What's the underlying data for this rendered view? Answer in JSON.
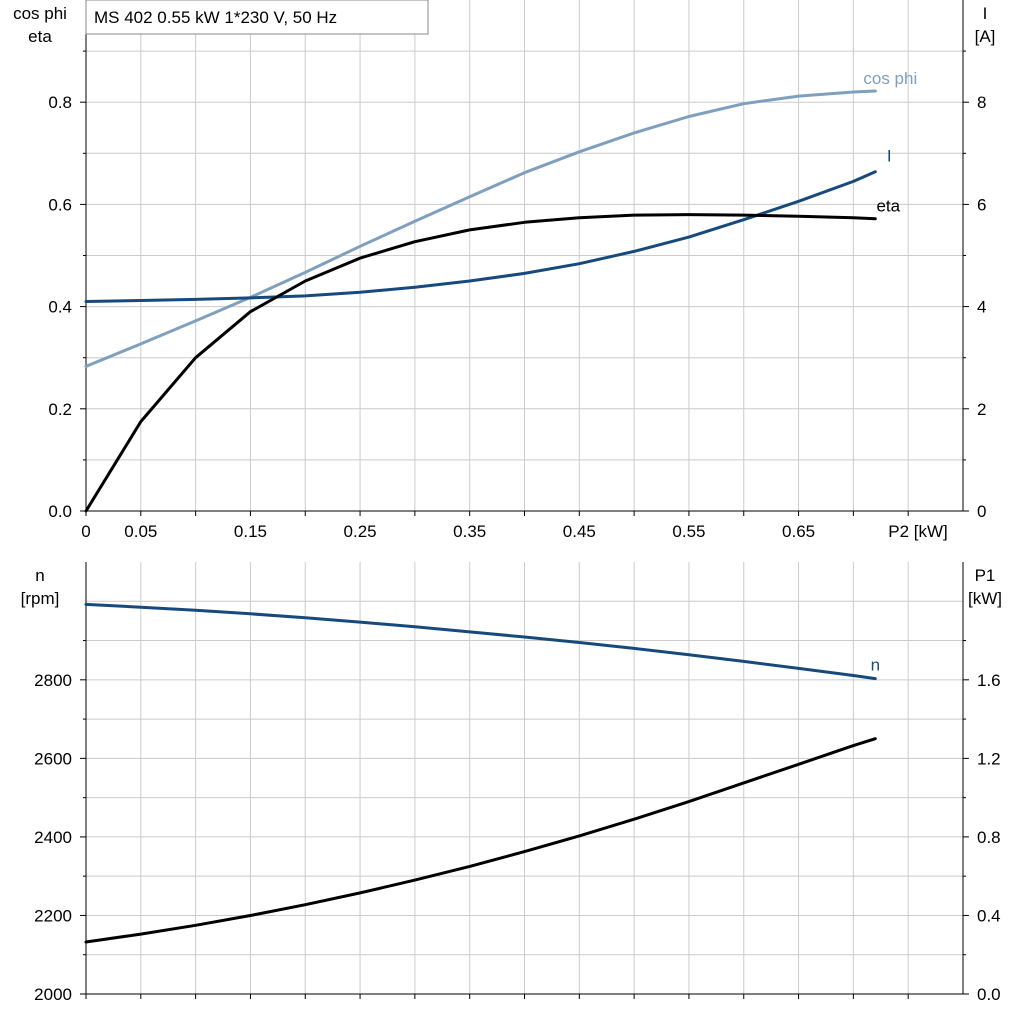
{
  "colors": {
    "cos_phi": "#7f9fbf",
    "current": "#174a7c",
    "eta": "#000000",
    "speed": "#174a7c",
    "p1": "#000000",
    "grid": "#cccccc",
    "axis": "#000000"
  },
  "chart_data": [
    {
      "type": "line",
      "title": "MS 402   0.55 kW   1*230 V, 50 Hz",
      "left_axis_label": [
        "cos phi",
        "eta"
      ],
      "right_axis_label": [
        "I",
        "[A]"
      ],
      "x_axis_label": "P2 [kW]",
      "x_tick_labels": [
        "0",
        "0.05",
        "0.15",
        "0.25",
        "0.35",
        "0.45",
        "0.55",
        "0.65"
      ],
      "x_ticks": [
        0,
        0.05,
        0.15,
        0.25,
        0.35,
        0.45,
        0.55,
        0.65
      ],
      "xlim": [
        0,
        0.8
      ],
      "left_ylim": [
        0,
        1.0
      ],
      "left_tick_labels": [
        "0.0",
        "0.2",
        "0.4",
        "0.6",
        "0.8"
      ],
      "right_ylim": [
        0,
        10
      ],
      "right_tick_labels": [
        "0",
        "2",
        "4",
        "6",
        "8"
      ],
      "grid": true,
      "series": [
        {
          "name": "cos phi",
          "axis": "left",
          "x": [
            0,
            0.05,
            0.1,
            0.15,
            0.2,
            0.25,
            0.3,
            0.35,
            0.4,
            0.45,
            0.5,
            0.55,
            0.6,
            0.65,
            0.7,
            0.72
          ],
          "values": [
            0.283,
            0.327,
            0.372,
            0.418,
            0.467,
            0.518,
            0.567,
            0.615,
            0.662,
            0.703,
            0.74,
            0.772,
            0.797,
            0.812,
            0.82,
            0.822
          ]
        },
        {
          "name": "I",
          "axis": "right",
          "x": [
            0,
            0.05,
            0.1,
            0.15,
            0.2,
            0.25,
            0.3,
            0.35,
            0.4,
            0.45,
            0.5,
            0.55,
            0.6,
            0.65,
            0.7,
            0.72
          ],
          "values": [
            4.1,
            4.12,
            4.14,
            4.17,
            4.21,
            4.28,
            4.38,
            4.5,
            4.65,
            4.84,
            5.08,
            5.36,
            5.7,
            6.06,
            6.45,
            6.64
          ]
        },
        {
          "name": "eta",
          "axis": "left",
          "x": [
            0,
            0.05,
            0.1,
            0.15,
            0.2,
            0.25,
            0.3,
            0.35,
            0.4,
            0.45,
            0.5,
            0.55,
            0.6,
            0.65,
            0.7,
            0.72
          ],
          "values": [
            0.0,
            0.175,
            0.3,
            0.39,
            0.45,
            0.495,
            0.527,
            0.55,
            0.565,
            0.574,
            0.579,
            0.58,
            0.579,
            0.577,
            0.574,
            0.572
          ]
        }
      ]
    },
    {
      "type": "line",
      "left_axis_label": [
        "n",
        "[rpm]"
      ],
      "right_axis_label": [
        "P1",
        "[kW]"
      ],
      "xlim": [
        0,
        0.8
      ],
      "left_ylim": [
        2000,
        3100
      ],
      "left_tick_labels": [
        "2000",
        "2200",
        "2400",
        "2600",
        "2800"
      ],
      "right_ylim": [
        0,
        2.2
      ],
      "right_tick_labels": [
        "0.0",
        "0.4",
        "0.8",
        "1.2",
        "1.6"
      ],
      "grid": true,
      "series": [
        {
          "name": "n",
          "axis": "left",
          "x": [
            0,
            0.05,
            0.1,
            0.15,
            0.2,
            0.25,
            0.3,
            0.35,
            0.4,
            0.45,
            0.5,
            0.55,
            0.6,
            0.65,
            0.7,
            0.72
          ],
          "values": [
            2992,
            2985,
            2977,
            2968,
            2958,
            2947,
            2935,
            2922,
            2909,
            2895,
            2880,
            2864,
            2847,
            2829,
            2811,
            2803
          ]
        },
        {
          "axis": "right",
          "x": [
            0,
            0.05,
            0.1,
            0.15,
            0.2,
            0.25,
            0.3,
            0.35,
            0.4,
            0.45,
            0.5,
            0.55,
            0.6,
            0.65,
            0.7,
            0.72
          ],
          "values": [
            0.265,
            0.305,
            0.35,
            0.4,
            0.455,
            0.515,
            0.58,
            0.65,
            0.725,
            0.805,
            0.89,
            0.98,
            1.075,
            1.17,
            1.265,
            1.3
          ]
        }
      ]
    }
  ]
}
